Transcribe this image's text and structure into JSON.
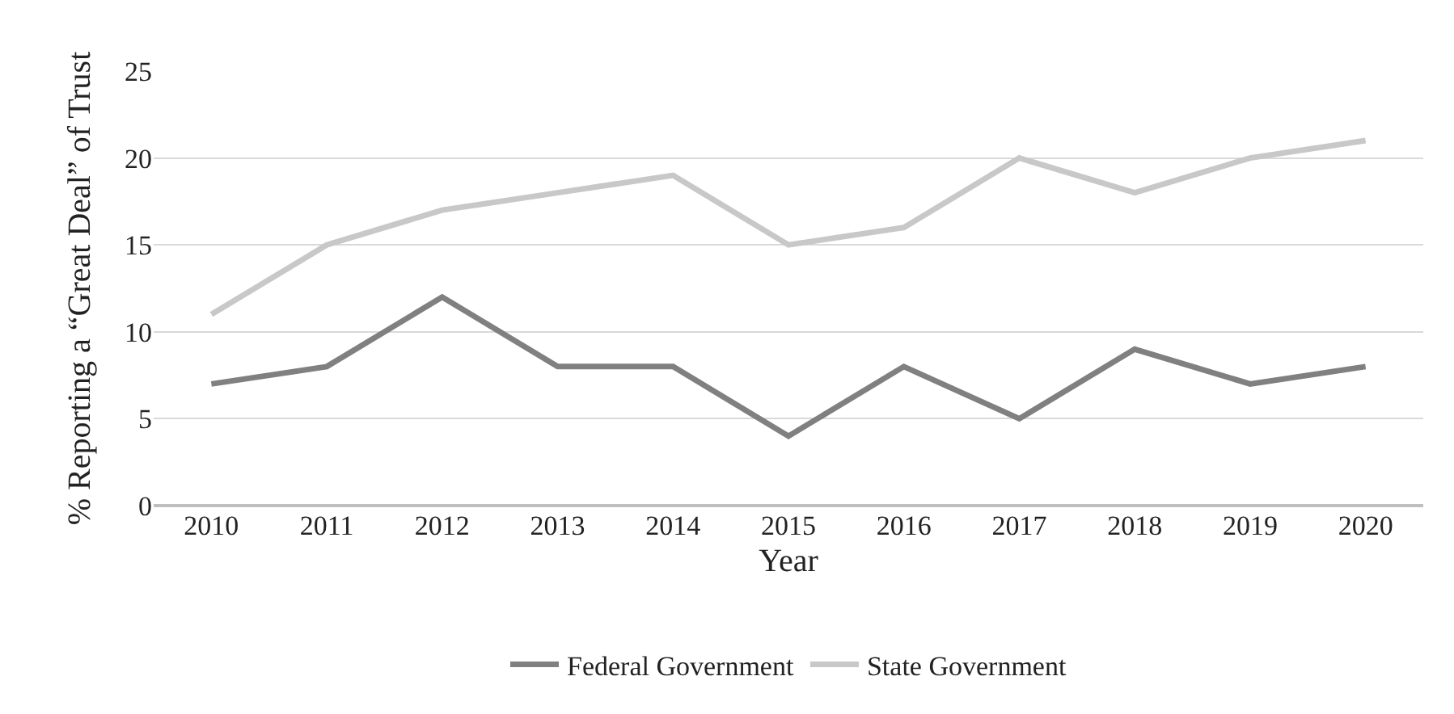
{
  "chart_data": {
    "type": "line",
    "xlabel": "Year",
    "ylabel": "% Reporting a “Great Deal” of Trust",
    "categories": [
      "2010",
      "2011",
      "2012",
      "2013",
      "2014",
      "2015",
      "2016",
      "2017",
      "2018",
      "2019",
      "2020"
    ],
    "series": [
      {
        "name": "Federal Government",
        "color": "#808080",
        "values": [
          7,
          8,
          12,
          8,
          8,
          4,
          8,
          5,
          9,
          7,
          8
        ]
      },
      {
        "name": "State Government",
        "color": "#c8c8c8",
        "values": [
          11,
          15,
          17,
          18,
          19,
          15,
          16,
          20,
          18,
          20,
          21
        ]
      }
    ],
    "ylim": [
      0,
      25
    ],
    "yticks": [
      0,
      5,
      10,
      15,
      20,
      25
    ],
    "grid": "y",
    "legend": "bottom",
    "marker": "none",
    "line_style": "solid"
  }
}
